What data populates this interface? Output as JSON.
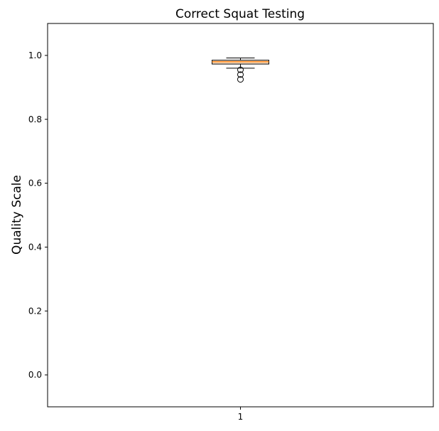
{
  "chart_data": {
    "type": "box",
    "title": "Correct Squat Testing",
    "xlabel": "",
    "ylabel": "Quality Scale",
    "ylim": [
      -0.1,
      1.1
    ],
    "yticks": [
      0.0,
      0.2,
      0.4,
      0.6,
      0.8,
      1.0
    ],
    "ytick_labels": [
      "0.0",
      "0.2",
      "0.4",
      "0.6",
      "0.8",
      "1.0"
    ],
    "categories": [
      "1"
    ],
    "boxes": [
      {
        "category": "1",
        "whisker_low": 0.96,
        "q1": 0.973,
        "median": 0.98,
        "q3": 0.985,
        "whisker_high": 0.992,
        "outliers": [
          0.955,
          0.94,
          0.925
        ]
      }
    ],
    "grid": false,
    "colors": {
      "box_fill": "#ffe4cc",
      "box_edge": "#000000",
      "median": "#ff7f0e",
      "whisker": "#000000",
      "outlier_edge": "#000000"
    }
  }
}
